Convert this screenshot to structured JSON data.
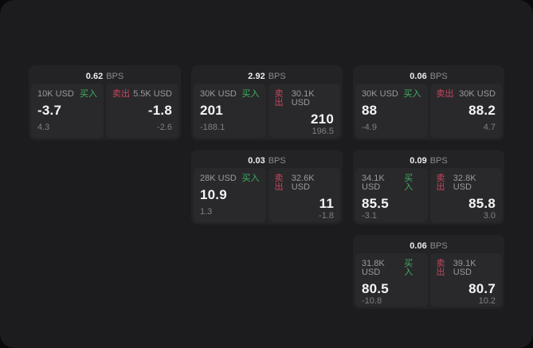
{
  "labels": {
    "bps": "BPS",
    "buy": "买入",
    "sell": "卖出"
  },
  "colors": {
    "backdrop": "#0a0a0a",
    "window_bg": "#1c1c1e",
    "card_bg": "#232325",
    "panel_bg": "#29292b",
    "buy_green": "#3fae63",
    "sell_red": "#c5465e"
  },
  "cards": [
    {
      "bps": "0.62",
      "buy": {
        "size": "10K USD",
        "value": "-3.7",
        "sub": "4.3"
      },
      "sell": {
        "size": "5.5K USD",
        "value": "-1.8",
        "sub": "-2.6"
      }
    },
    {
      "bps": "2.92",
      "buy": {
        "size": "30K USD",
        "value": "201",
        "sub": "-188.1"
      },
      "sell": {
        "size": "30.1K USD",
        "value": "210",
        "sub": "196.5"
      }
    },
    {
      "bps": "0.06",
      "buy": {
        "size": "30K USD",
        "value": "88",
        "sub": "-4.9"
      },
      "sell": {
        "size": "30K USD",
        "value": "88.2",
        "sub": "4.7"
      }
    },
    {
      "bps": "0.03",
      "buy": {
        "size": "28K USD",
        "value": "10.9",
        "sub": "1.3"
      },
      "sell": {
        "size": "32.6K USD",
        "value": "11",
        "sub": "-1.8"
      }
    },
    {
      "bps": "0.09",
      "buy": {
        "size": "34.1K USD",
        "value": "85.5",
        "sub": "-3.1"
      },
      "sell": {
        "size": "32.8K USD",
        "value": "85.8",
        "sub": "3.0"
      }
    },
    {
      "bps": "0.06",
      "buy": {
        "size": "31.8K USD",
        "value": "80.5",
        "sub": "-10.8"
      },
      "sell": {
        "size": "39.1K USD",
        "value": "80.7",
        "sub": "10.2"
      }
    }
  ]
}
